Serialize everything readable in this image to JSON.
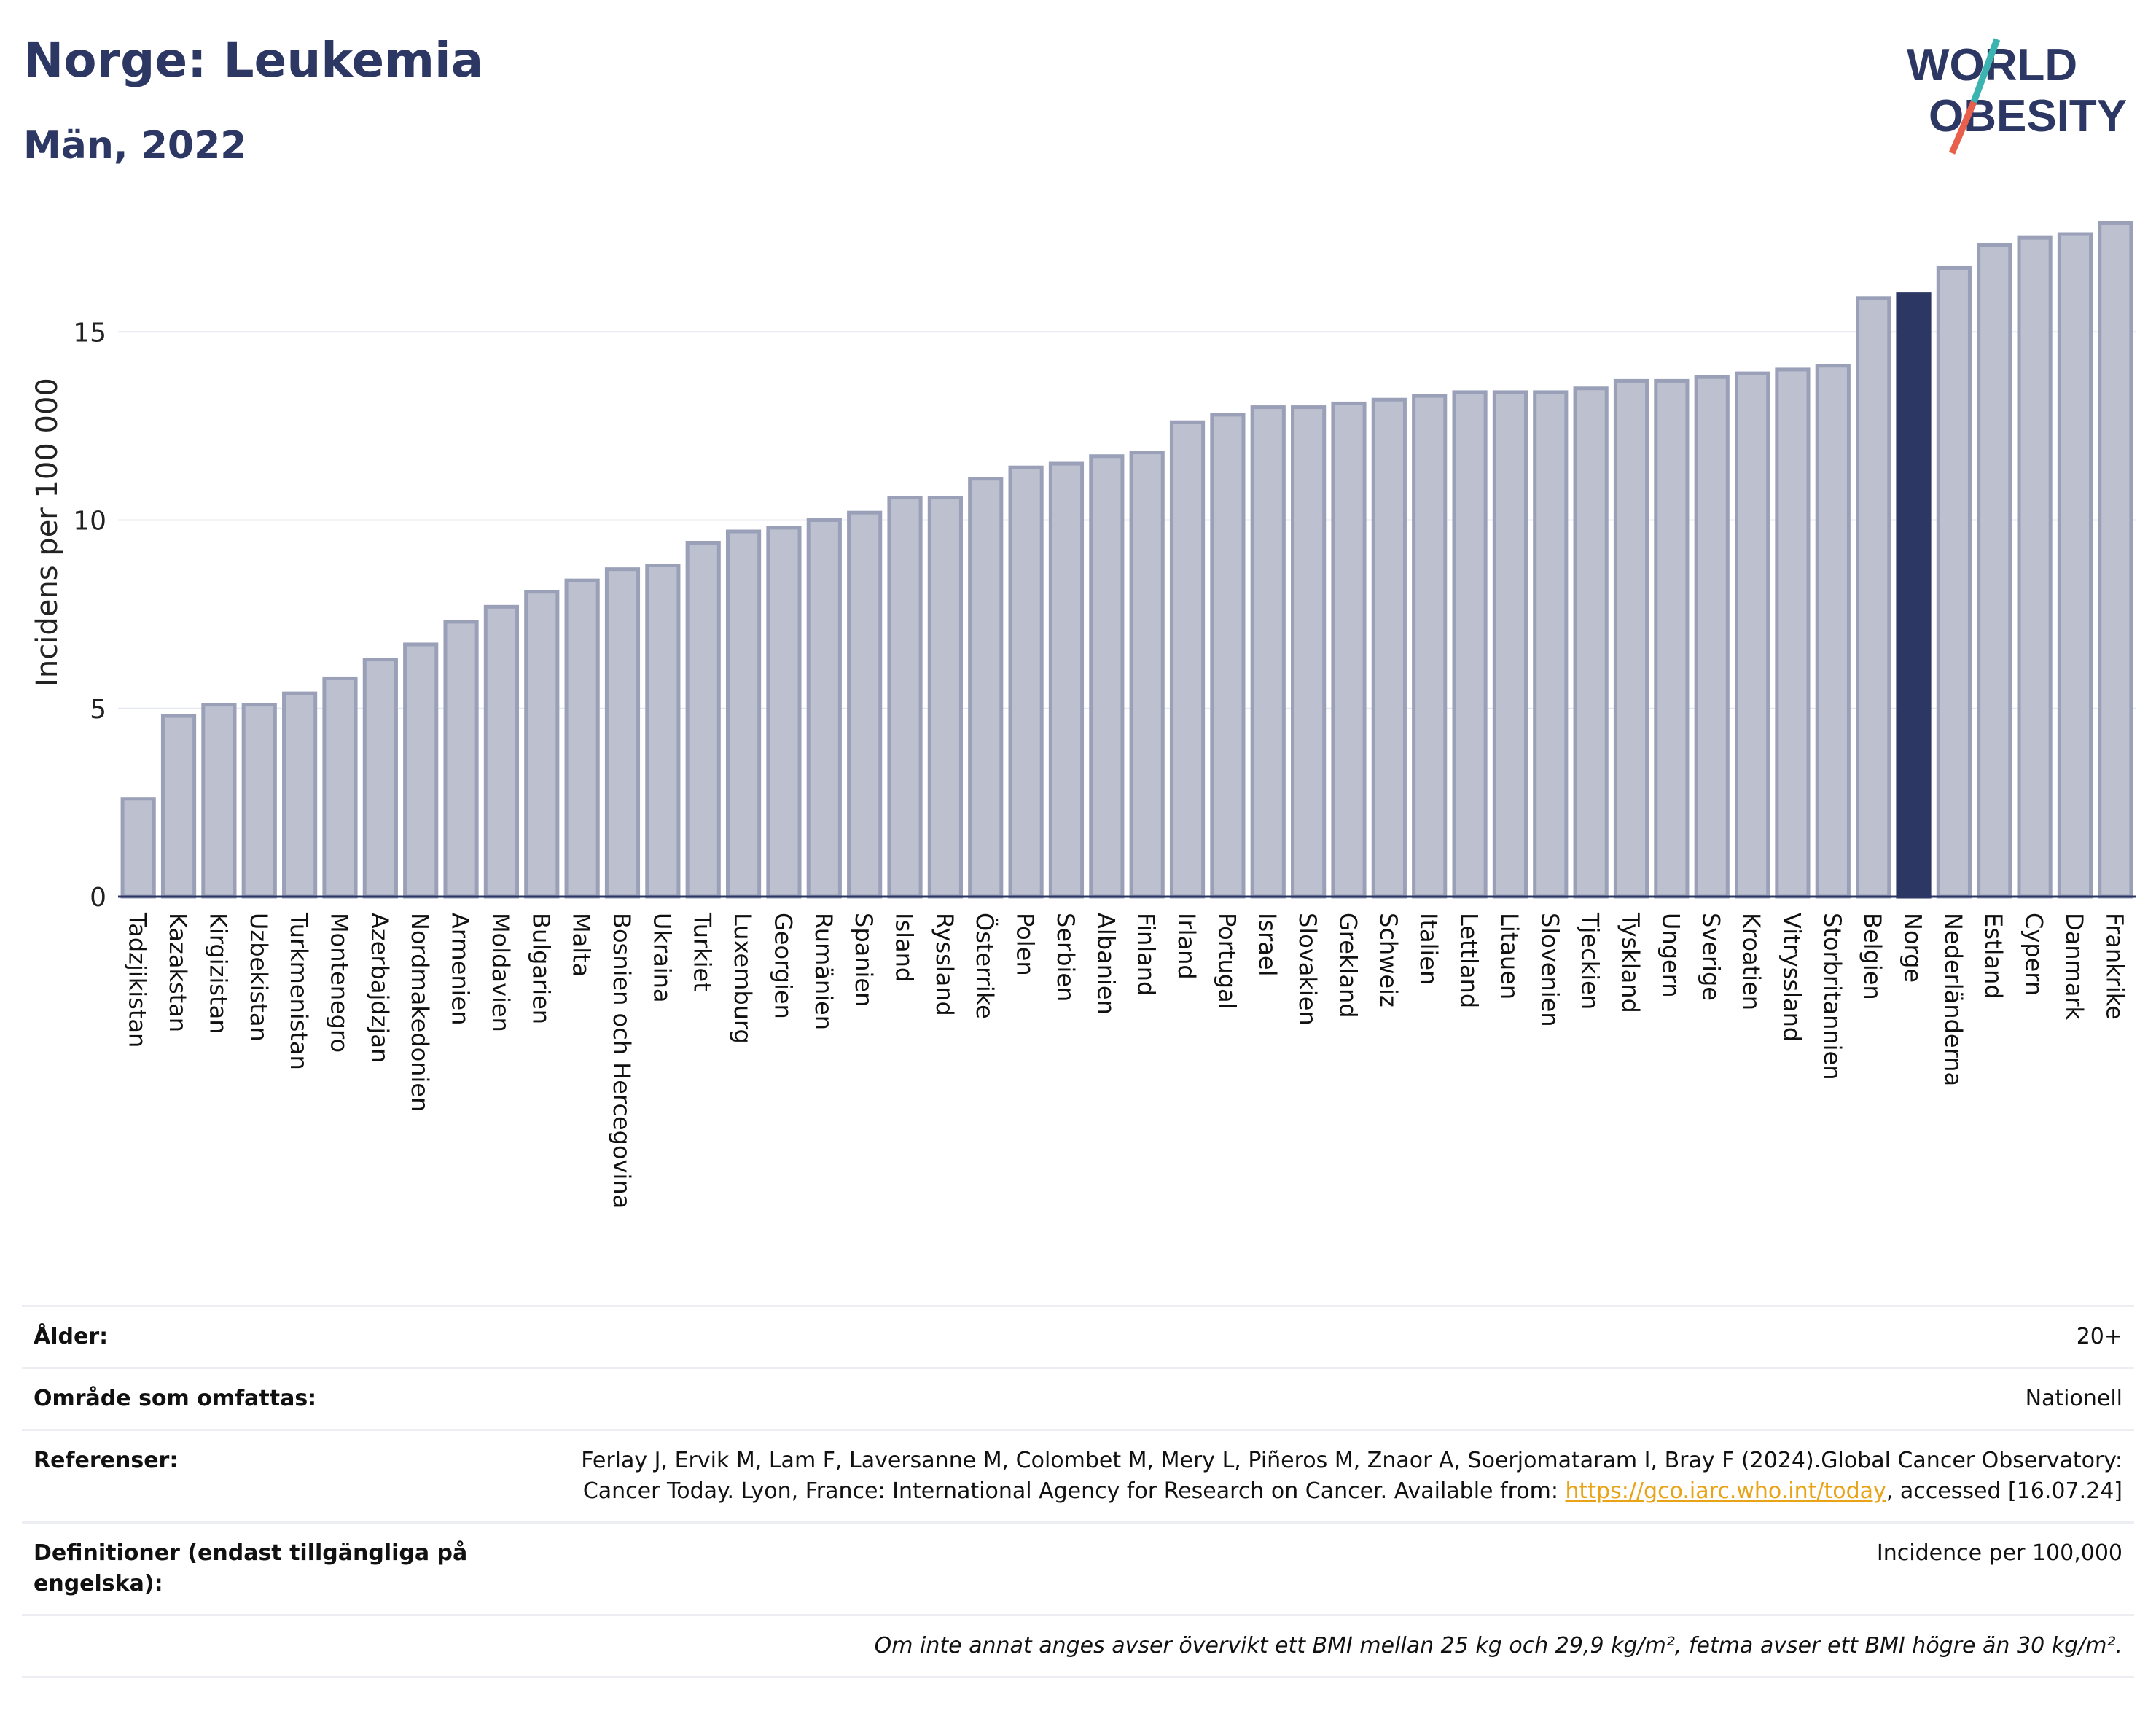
{
  "header": {
    "title": "Norge: Leukemia",
    "subtitle": "Män, 2022"
  },
  "logo": {
    "line1": "WORLD",
    "line2": "OBESITY",
    "colors": {
      "text": "#2c3763",
      "slash_teal": "#3bb3b0",
      "slash_red": "#e8604c"
    }
  },
  "chart_data": {
    "type": "bar",
    "ylabel": "Incidens per 100 000",
    "ylim": [
      0,
      18.2
    ],
    "yticks": [
      0,
      5,
      10,
      15
    ],
    "grid": true,
    "highlight": "Norge",
    "colors": {
      "bar": "#bcc0cf",
      "bar_edge": "#9aa0b8",
      "highlight": "#2c3763"
    },
    "categories": [
      "Tadzjikistan",
      "Kazakstan",
      "Kirgizistan",
      "Uzbekistan",
      "Turkmenistan",
      "Montenegro",
      "Azerbajdzjan",
      "Nordmakedonien",
      "Armenien",
      "Moldavien",
      "Bulgarien",
      "Malta",
      "Bosnien och Hercegovina",
      "Ukraina",
      "Turkiet",
      "Luxemburg",
      "Georgien",
      "Rumänien",
      "Spanien",
      "Island",
      "Ryssland",
      "Österrike",
      "Polen",
      "Serbien",
      "Albanien",
      "Finland",
      "Irland",
      "Portugal",
      "Israel",
      "Slovakien",
      "Grekland",
      "Schweiz",
      "Italien",
      "Lettland",
      "Litauen",
      "Slovenien",
      "Tjeckien",
      "Tyskland",
      "Ungern",
      "Sverige",
      "Kroatien",
      "Vitryssland",
      "Storbritannien",
      "Belgien",
      "Norge",
      "Nederländerna",
      "Estland",
      "Cypern",
      "Danmark",
      "Frankrike"
    ],
    "values": [
      2.6,
      4.8,
      5.1,
      5.1,
      5.4,
      5.8,
      6.3,
      6.7,
      7.3,
      7.7,
      8.1,
      8.4,
      8.7,
      8.8,
      9.4,
      9.7,
      9.8,
      10.0,
      10.2,
      10.6,
      10.6,
      11.1,
      11.4,
      11.5,
      11.7,
      11.8,
      12.6,
      12.8,
      13.0,
      13.0,
      13.1,
      13.2,
      13.3,
      13.4,
      13.4,
      13.4,
      13.5,
      13.7,
      13.7,
      13.8,
      13.9,
      14.0,
      14.1,
      15.9,
      16.0,
      16.7,
      17.3,
      17.5,
      17.6,
      17.9
    ]
  },
  "info": {
    "age_label": "Ålder:",
    "age_value": "20+",
    "area_label": "Område som omfattas:",
    "area_value": "Nationell",
    "ref_label": "Referenser:",
    "ref_text_before": "Ferlay J, Ervik M, Lam F, Laversanne M, Colombet M, Mery L, Piñeros M, Znaor A, Soerjomataram I, Bray F (2024).Global Cancer Observatory: Cancer Today. Lyon, France: International Agency for Research on Cancer. Available from: ",
    "ref_link": "https://gco.iarc.who.int/today",
    "ref_text_after": ", accessed [16.07.24]",
    "def_label": "Definitioner (endast tillgängliga på engelska):",
    "def_value": "Incidence per 100,000",
    "note": "Om inte annat anges avser övervikt ett BMI mellan 25 kg och 29,9 kg/m², fetma avser ett BMI högre än 30 kg/m²."
  }
}
